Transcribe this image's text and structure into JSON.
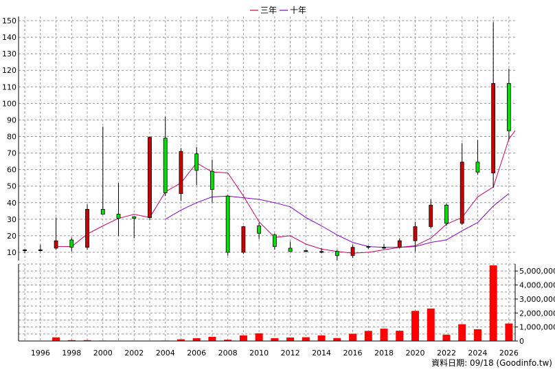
{
  "chart_data": [
    {
      "type": "candlestick",
      "legend": [
        {
          "label": "三年",
          "color": "#cc0066"
        },
        {
          "label": "十年",
          "color": "#8000cc"
        }
      ],
      "ylim": [
        0,
        150
      ],
      "yticks": [
        10,
        20,
        30,
        40,
        50,
        60,
        70,
        80,
        90,
        100,
        110,
        120,
        130,
        140,
        150
      ],
      "x_range": [
        1994.6,
        2026.4
      ],
      "x_tick_years": [
        1996,
        1998,
        2000,
        2002,
        2004,
        2006,
        2008,
        2010,
        2012,
        2014,
        2016,
        2018,
        2020,
        2022,
        2024,
        2026
      ],
      "grid": true,
      "candles": [
        {
          "year": 1995,
          "open": 11.5,
          "close": 11.5,
          "high": 11.8,
          "low": 9.5
        },
        {
          "year": 1996,
          "open": 11.5,
          "close": 11.5,
          "high": 14.5,
          "low": 10.5
        },
        {
          "year": 1997,
          "open": 17,
          "close": 12.5,
          "high": 31,
          "low": 11.5
        },
        {
          "year": 1998,
          "open": 13,
          "close": 17.5,
          "high": 19,
          "low": 10.5
        },
        {
          "year": 1999,
          "open": 36,
          "close": 13,
          "high": 39,
          "low": 11.5
        },
        {
          "year": 2000,
          "open": 33,
          "close": 36,
          "high": 86,
          "low": 33
        },
        {
          "year": 2001,
          "open": 30.5,
          "close": 33,
          "high": 52,
          "low": 20
        },
        {
          "year": 2002,
          "open": 30.5,
          "close": 31.5,
          "high": 31.5,
          "low": 18.5
        },
        {
          "year": 2003,
          "open": 79.5,
          "close": 31,
          "high": 80,
          "low": 29.5
        },
        {
          "year": 2004,
          "open": 46,
          "close": 79,
          "high": 92,
          "low": 44
        },
        {
          "year": 2005,
          "open": 71,
          "close": 45.5,
          "high": 73,
          "low": 41
        },
        {
          "year": 2006,
          "open": 59.5,
          "close": 69.5,
          "high": 73.5,
          "low": 50.5
        },
        {
          "year": 2007,
          "open": 48,
          "close": 59,
          "high": 66,
          "low": 40
        },
        {
          "year": 2008,
          "open": 10,
          "close": 44,
          "high": 44.5,
          "low": 8
        },
        {
          "year": 2009,
          "open": 25.5,
          "close": 10,
          "high": 26,
          "low": 9
        },
        {
          "year": 2010,
          "open": 21.5,
          "close": 26,
          "high": 28,
          "low": 18
        },
        {
          "year": 2011,
          "open": 13.5,
          "close": 20.5,
          "high": 21.5,
          "low": 11.5
        },
        {
          "year": 2012,
          "open": 10.5,
          "close": 12.5,
          "high": 16.5,
          "low": 10.5
        },
        {
          "year": 2013,
          "open": 11,
          "close": 11,
          "high": 11.5,
          "low": 10.5
        },
        {
          "year": 2014,
          "open": 10.5,
          "close": 10.5,
          "high": 12.5,
          "low": 9.5
        },
        {
          "year": 2015,
          "open": 8,
          "close": 10.5,
          "high": 11.5,
          "low": 5
        },
        {
          "year": 2016,
          "open": 13,
          "close": 8,
          "high": 14.5,
          "low": 6.5
        },
        {
          "year": 2017,
          "open": 13.5,
          "close": 13,
          "high": 14,
          "low": 12
        },
        {
          "year": 2018,
          "open": 13,
          "close": 13,
          "high": 15,
          "low": 12
        },
        {
          "year": 2019,
          "open": 17,
          "close": 13,
          "high": 18.5,
          "low": 12.5
        },
        {
          "year": 2020,
          "open": 25.5,
          "close": 17,
          "high": 28.5,
          "low": 10.5
        },
        {
          "year": 2021,
          "open": 38.5,
          "close": 25.5,
          "high": 42,
          "low": 24.5
        },
        {
          "year": 2022,
          "open": 27.5,
          "close": 38.5,
          "high": 39.5,
          "low": 26
        },
        {
          "year": 2023,
          "open": 64.5,
          "close": 27.5,
          "high": 76,
          "low": 26.5
        },
        {
          "year": 2024,
          "open": 58.5,
          "close": 64.5,
          "high": 78,
          "low": 57
        },
        {
          "year": 2025,
          "open": 112,
          "close": 58,
          "high": 149,
          "low": 49
        },
        {
          "year": 2026,
          "open": 83.5,
          "close": 112,
          "high": 121,
          "low": 78
        }
      ],
      "ma_3y": {
        "name": "三年",
        "points": [
          [
            1997,
            13.5
          ],
          [
            1998,
            13.5
          ],
          [
            1999,
            21
          ],
          [
            2000,
            26
          ],
          [
            2001,
            30.5
          ],
          [
            2002,
            33
          ],
          [
            2003,
            31
          ],
          [
            2004,
            46.5
          ],
          [
            2005,
            52
          ],
          [
            2006,
            64
          ],
          [
            2007,
            58.5
          ],
          [
            2008,
            58
          ],
          [
            2009,
            44
          ],
          [
            2010,
            28.5
          ],
          [
            2011,
            19
          ],
          [
            2012,
            20
          ],
          [
            2013,
            15
          ],
          [
            2014,
            12
          ],
          [
            2015,
            10.5
          ],
          [
            2016,
            9.5
          ],
          [
            2017,
            10
          ],
          [
            2018,
            11.5
          ],
          [
            2019,
            13
          ],
          [
            2020,
            14
          ],
          [
            2021,
            18.5
          ],
          [
            2022,
            27
          ],
          [
            2023,
            31
          ],
          [
            2024,
            43.5
          ],
          [
            2025,
            49.5
          ],
          [
            2026,
            78.5
          ],
          [
            2026.4,
            83.5
          ]
        ]
      },
      "ma_10y": {
        "name": "十年",
        "points": [
          [
            2004,
            30
          ],
          [
            2005,
            35.5
          ],
          [
            2006,
            40
          ],
          [
            2007,
            43.5
          ],
          [
            2008,
            44
          ],
          [
            2009,
            43
          ],
          [
            2010,
            42
          ],
          [
            2011,
            40
          ],
          [
            2012,
            37.5
          ],
          [
            2013,
            31
          ],
          [
            2014,
            26
          ],
          [
            2015,
            20.5
          ],
          [
            2016,
            16
          ],
          [
            2017,
            13.5
          ],
          [
            2018,
            13
          ],
          [
            2019,
            13
          ],
          [
            2020,
            13.5
          ],
          [
            2021,
            16
          ],
          [
            2022,
            17.5
          ],
          [
            2023,
            23
          ],
          [
            2024,
            28
          ],
          [
            2025,
            38
          ],
          [
            2026,
            45.5
          ]
        ]
      }
    },
    {
      "type": "bar",
      "ylim": [
        0,
        5500000
      ],
      "yticks": [
        0,
        1000000,
        2000000,
        3000000,
        4000000,
        5000000
      ],
      "ytick_labels": [
        "0",
        "1,000,000",
        "2,000,000",
        "3,000,000",
        "4,000,000",
        "5,000,000"
      ],
      "bar_color": "#ff0000",
      "x": [
        1995,
        1996,
        1997,
        1998,
        1999,
        2000,
        2001,
        2002,
        2003,
        2004,
        2005,
        2006,
        2007,
        2008,
        2009,
        2010,
        2011,
        2012,
        2013,
        2014,
        2015,
        2016,
        2017,
        2018,
        2019,
        2020,
        2021,
        2022,
        2023,
        2024,
        2025,
        2026
      ],
      "values": [
        2000,
        20000,
        260000,
        60000,
        60000,
        30000,
        20000,
        15000,
        15000,
        30000,
        120000,
        200000,
        300000,
        90000,
        400000,
        550000,
        200000,
        250000,
        270000,
        400000,
        210000,
        520000,
        720000,
        880000,
        730000,
        2150000,
        2320000,
        450000,
        1200000,
        840000,
        5400000,
        1250000
      ]
    }
  ],
  "footer": {
    "text": "資料日期: 09/18  (Goodinfo.tw)"
  }
}
